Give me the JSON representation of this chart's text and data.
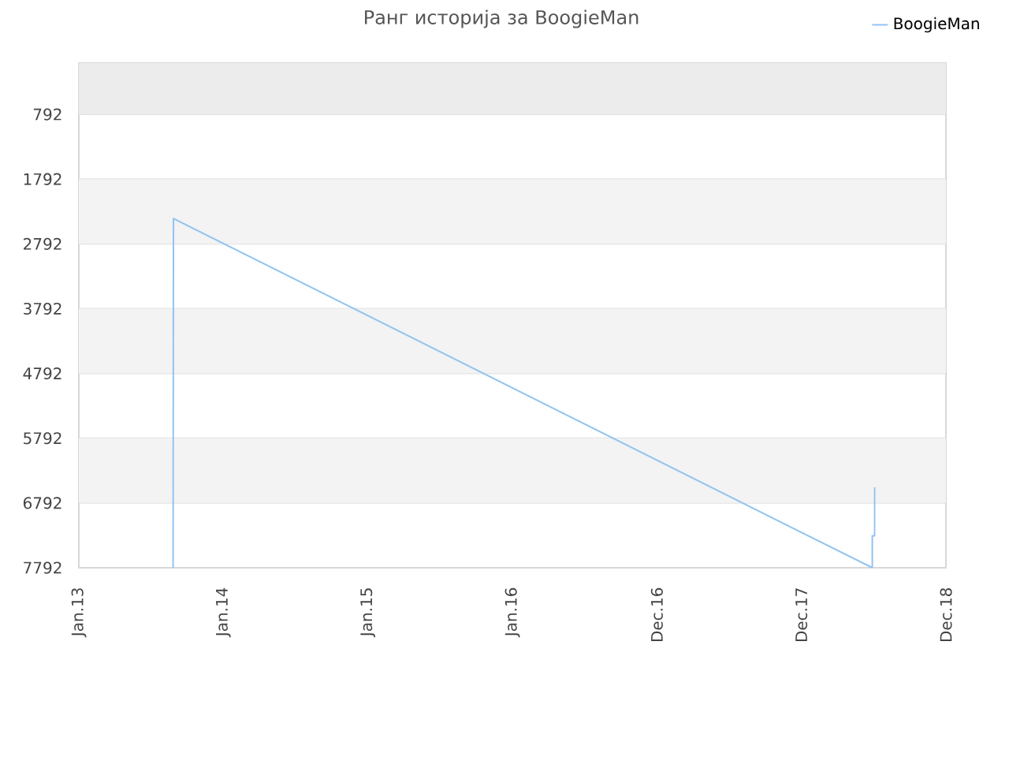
{
  "chart_data": {
    "type": "line",
    "title": "Ранг историја за BoogieMan",
    "x": [
      "2013-08-27",
      "2013-08-28",
      "2018-06-28",
      "2018-06-28",
      "2018-07-04",
      "2018-07-04"
    ],
    "series": [
      {
        "name": "BoogieMan",
        "color": "#90c3f3",
        "values": [
          7792,
          2400,
          7792,
          7300,
          7300,
          6550
        ]
      }
    ],
    "xlim": [
      "2013-01-01",
      "2018-12-31"
    ],
    "xticks": [
      {
        "value": "2013-01-01",
        "label": "Jan.13"
      },
      {
        "value": "2014-01-01",
        "label": "Jan.14"
      },
      {
        "value": "2015-01-01",
        "label": "Jan.15"
      },
      {
        "value": "2016-01-01",
        "label": "Jan.16"
      },
      {
        "value": "2016-12-31",
        "label": "Dec.16"
      },
      {
        "value": "2017-12-31",
        "label": "Dec.17"
      },
      {
        "value": "2018-12-31",
        "label": "Dec.18"
      }
    ],
    "ylim": [
      7792,
      0
    ],
    "yticks": [
      792,
      1792,
      2792,
      3792,
      4792,
      5792,
      6792,
      7792
    ],
    "grid": "y",
    "legend": "top right",
    "bands": [
      {
        "axis": "y",
        "from": 0,
        "to": 792,
        "color": "#ececec"
      },
      {
        "axis": "y",
        "from": 1792,
        "to": 2792,
        "color": "#f3f3f3"
      },
      {
        "axis": "y",
        "from": 3792,
        "to": 4792,
        "color": "#f3f3f3"
      },
      {
        "axis": "y",
        "from": 5792,
        "to": 6792,
        "color": "#f3f3f3"
      }
    ]
  }
}
